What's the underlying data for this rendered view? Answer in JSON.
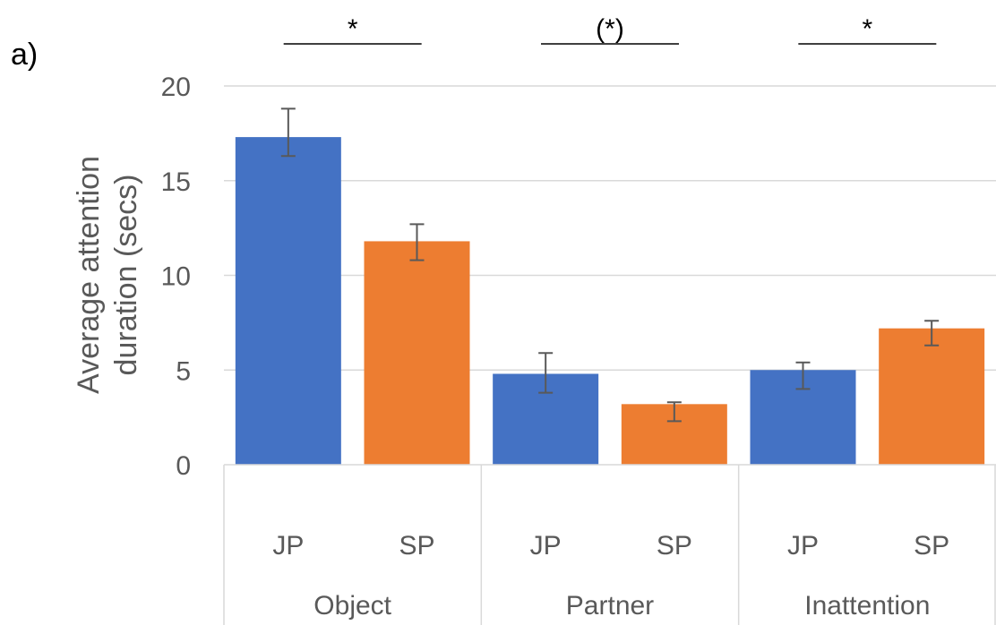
{
  "panel_label": "a)",
  "chart_data": {
    "type": "bar",
    "title": "",
    "ylabel_lines": [
      "Average attention",
      "duration (secs)"
    ],
    "xlabel": "",
    "ylim": [
      0,
      20
    ],
    "yticks": [
      0,
      5,
      10,
      15,
      20
    ],
    "grid": true,
    "groups": [
      {
        "name": "Object",
        "significance": "*",
        "bars": [
          {
            "label": "JP",
            "value": 17.3,
            "err_low": 16.3,
            "err_high": 18.8,
            "color": "#4472C4"
          },
          {
            "label": "SP",
            "value": 11.8,
            "err_low": 10.8,
            "err_high": 12.7,
            "color": "#ED7D31"
          }
        ]
      },
      {
        "name": "Partner",
        "significance": "(*)",
        "bars": [
          {
            "label": "JP",
            "value": 4.8,
            "err_low": 3.8,
            "err_high": 5.9,
            "color": "#4472C4"
          },
          {
            "label": "SP",
            "value": 3.2,
            "err_low": 2.3,
            "err_high": 3.3,
            "color": "#ED7D31"
          }
        ]
      },
      {
        "name": "Inattention",
        "significance": "*",
        "bars": [
          {
            "label": "JP",
            "value": 5.0,
            "err_low": 4.0,
            "err_high": 5.4,
            "color": "#4472C4"
          },
          {
            "label": "SP",
            "value": 7.2,
            "err_low": 6.3,
            "err_high": 7.6,
            "color": "#ED7D31"
          }
        ]
      }
    ]
  }
}
